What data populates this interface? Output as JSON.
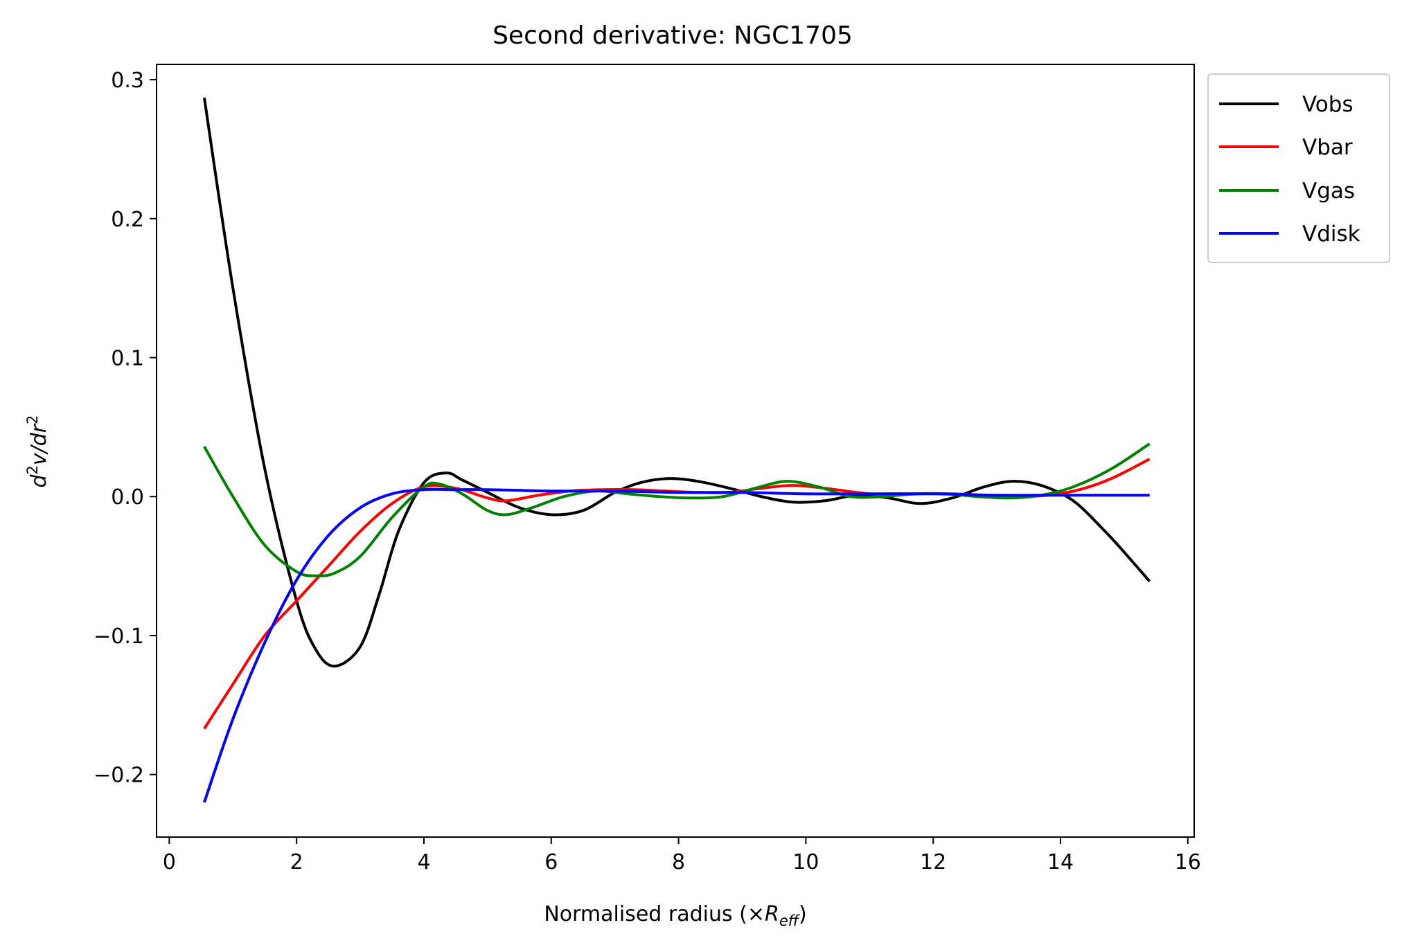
{
  "chart_data": {
    "type": "line",
    "title": "Second derivative: NGC1705",
    "xlabel": {
      "prefix": "Normalised radius (×",
      "var": "R",
      "sub": "eff",
      "suffix": ")"
    },
    "ylabel": {
      "d": "d",
      "sup1": "2",
      "v": "v",
      "slash": "/",
      "dr": "dr",
      "sup2": "2"
    },
    "xlim": [
      -0.2,
      16.1
    ],
    "ylim": [
      -0.245,
      0.311
    ],
    "x_ticks": [
      0,
      2,
      4,
      6,
      8,
      10,
      12,
      14,
      16
    ],
    "x_tick_labels": [
      "0",
      "2",
      "4",
      "6",
      "8",
      "10",
      "12",
      "14",
      "16"
    ],
    "y_ticks": [
      -0.2,
      -0.1,
      0.0,
      0.1,
      0.2,
      0.3
    ],
    "y_tick_labels": [
      "−0.2",
      "−0.1",
      "0.0",
      "0.1",
      "0.2",
      "0.3"
    ],
    "grid": false,
    "legend": "outside top-right",
    "series": [
      {
        "name": "Vobs",
        "color": "#000000",
        "x": [
          0.55,
          1.0,
          1.5,
          2.0,
          2.3,
          2.6,
          3.0,
          3.3,
          3.6,
          4.0,
          4.35,
          4.6,
          5.0,
          5.5,
          6.0,
          6.5,
          7.0,
          7.4,
          7.85,
          8.3,
          8.8,
          9.3,
          9.8,
          10.3,
          10.8,
          11.3,
          11.8,
          12.3,
          12.8,
          13.25,
          13.7,
          14.2,
          14.7,
          15.0,
          15.4
        ],
        "y": [
          0.287,
          0.15,
          0.02,
          -0.075,
          -0.11,
          -0.122,
          -0.108,
          -0.07,
          -0.025,
          0.01,
          0.017,
          0.012,
          0.003,
          -0.008,
          -0.013,
          -0.01,
          0.003,
          0.01,
          0.013,
          0.011,
          0.006,
          0.0,
          -0.004,
          -0.003,
          0.001,
          -0.001,
          -0.005,
          -0.001,
          0.007,
          0.011,
          0.008,
          -0.003,
          -0.025,
          -0.04,
          -0.061
        ]
      },
      {
        "name": "Vbar",
        "color": "#ff0000",
        "x": [
          0.55,
          1.0,
          1.5,
          2.0,
          2.5,
          3.0,
          3.5,
          4.0,
          4.5,
          5.0,
          5.3,
          5.8,
          6.3,
          6.8,
          7.3,
          7.8,
          8.3,
          8.8,
          9.3,
          9.8,
          10.3,
          10.8,
          11.3,
          11.8,
          12.3,
          12.8,
          13.3,
          13.8,
          14.3,
          14.8,
          15.4
        ],
        "y": [
          -0.167,
          -0.135,
          -0.1,
          -0.075,
          -0.05,
          -0.025,
          -0.005,
          0.007,
          0.006,
          -0.001,
          -0.003,
          0.001,
          0.004,
          0.005,
          0.005,
          0.004,
          0.003,
          0.003,
          0.006,
          0.008,
          0.006,
          0.003,
          0.001,
          0.002,
          0.002,
          0.001,
          0.0,
          0.001,
          0.005,
          0.013,
          0.027
        ]
      },
      {
        "name": "Vgas",
        "color": "#008000",
        "x": [
          0.55,
          1.0,
          1.5,
          2.0,
          2.3,
          2.6,
          3.0,
          3.5,
          4.0,
          4.25,
          4.6,
          5.0,
          5.3,
          5.7,
          6.2,
          6.7,
          7.2,
          7.7,
          8.2,
          8.7,
          9.2,
          9.7,
          10.2,
          10.7,
          11.2,
          11.7,
          12.2,
          12.7,
          13.2,
          13.7,
          14.2,
          14.8,
          15.4
        ],
        "y": [
          0.036,
          0.0,
          -0.035,
          -0.054,
          -0.057,
          -0.055,
          -0.043,
          -0.015,
          0.007,
          0.009,
          0.002,
          -0.01,
          -0.013,
          -0.008,
          0.0,
          0.004,
          0.002,
          0.0,
          -0.001,
          0.0,
          0.006,
          0.011,
          0.007,
          0.0,
          0.0,
          0.002,
          0.002,
          0.0,
          -0.001,
          0.001,
          0.007,
          0.02,
          0.038
        ]
      },
      {
        "name": "Vdisk",
        "color": "#0000ff",
        "x": [
          0.55,
          1.0,
          1.5,
          2.0,
          2.5,
          3.0,
          3.5,
          4.0,
          4.5,
          5.0,
          6.0,
          7.0,
          8.0,
          9.0,
          10.0,
          11.0,
          12.0,
          13.0,
          14.0,
          15.4
        ],
        "y": [
          -0.22,
          -0.16,
          -0.105,
          -0.06,
          -0.028,
          -0.008,
          0.002,
          0.005,
          0.005,
          0.005,
          0.004,
          0.004,
          0.003,
          0.003,
          0.002,
          0.002,
          0.002,
          0.001,
          0.001,
          0.001
        ]
      }
    ]
  }
}
